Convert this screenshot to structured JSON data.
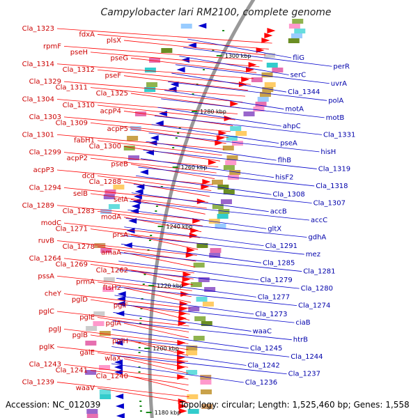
{
  "title": "Campylobacter lari RM2100, complete genome",
  "footer": {
    "accession": "Accession: NC_012039",
    "summary": "Topology: circular; Length: 1,525,460 bp; Genes: 1,558"
  },
  "colors": {
    "forward_strand": "#ff0000",
    "reverse_strand": "#0000cc",
    "backbone": "#999999",
    "tick_marks": "#1a8a1a"
  },
  "scale_ticks": [
    "1300 kbp",
    "1280 kbp",
    "1260 kbp",
    "1240 kbp",
    "1220 kbp",
    "1200 kbp",
    "1180 kbp"
  ],
  "forward_labels": [
    "Cla_1323",
    "fdxA",
    "plsX",
    "rpmF",
    "pseH",
    "pseG",
    "Cla_1314",
    "Cla_1312",
    "pseF",
    "Cla_1329",
    "Cla_1311",
    "Cla_1325",
    "Cla_1304",
    "Cla_1310",
    "acpP4",
    "Cla_1303",
    "Cla_1309",
    "acpP5",
    "Cla_1301",
    "fabH1",
    "Cla_1300",
    "Cla_1299",
    "acpP2",
    "pseB",
    "acpP3",
    "dcd",
    "Cla_1288",
    "Cla_1294",
    "selB",
    "selA",
    "Cla_1289",
    "Cla_1283",
    "modA",
    "modC",
    "Cla_1271",
    "prsA",
    "ruvB",
    "Cla_1278",
    "amaA",
    "Cla_1264",
    "Cla_1269",
    "Cla_1262",
    "pssA",
    "prmA",
    "ftsH2",
    "cheY",
    "pglD",
    "pglF",
    "pglC",
    "pglE",
    "pglA",
    "pglJ",
    "pglB",
    "pglH",
    "pglK",
    "galE",
    "wlaX",
    "Cla_1243",
    "Cla_1241",
    "Cla_1240",
    "Cla_1239",
    "waaV"
  ],
  "reverse_labels": [
    "fliG",
    "perR",
    "serC",
    "uvrA",
    "Cla_1344",
    "polA",
    "motA",
    "motB",
    "ahpC",
    "Cla_1331",
    "pseA",
    "hisH",
    "flhB",
    "Cla_1319",
    "hisF2",
    "Cla_1318",
    "Cla_1308",
    "Cla_1307",
    "accB",
    "accC",
    "gltX",
    "gdhA",
    "Cla_1291",
    "mez",
    "Cla_1285",
    "Cla_1281",
    "Cla_1279",
    "Cla_1280",
    "Cla_1277",
    "Cla_1274",
    "Cla_1273",
    "ciaB",
    "waaC",
    "htrB",
    "Cla_1245",
    "Cla_1244",
    "Cla_1242",
    "Cla_1237",
    "Cla_1236"
  ]
}
